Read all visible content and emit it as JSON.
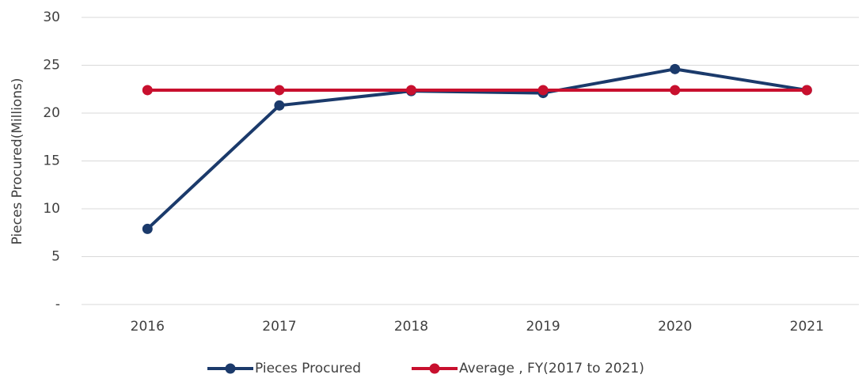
{
  "chart_data": {
    "type": "line",
    "y_label": "Pieces Procured(Millions)",
    "categories": [
      "2016",
      "2017",
      "2018",
      "2019",
      "2020",
      "2021"
    ],
    "series": [
      {
        "name": "Pieces Procured",
        "color": "#1b3a6b",
        "values": [
          7.9,
          20.8,
          22.3,
          22.1,
          24.6,
          22.4
        ]
      },
      {
        "name": "Average , FY(2017 to 2021)",
        "color": "#c8102e",
        "values": [
          22.4,
          22.4,
          22.4,
          22.4,
          22.4,
          22.4
        ]
      }
    ],
    "ylim": [
      0,
      30
    ],
    "yticks": [
      {
        "value": 0,
        "label": "-"
      },
      5,
      10,
      15,
      20,
      25,
      30
    ],
    "grid": true,
    "legend": "bottom"
  }
}
